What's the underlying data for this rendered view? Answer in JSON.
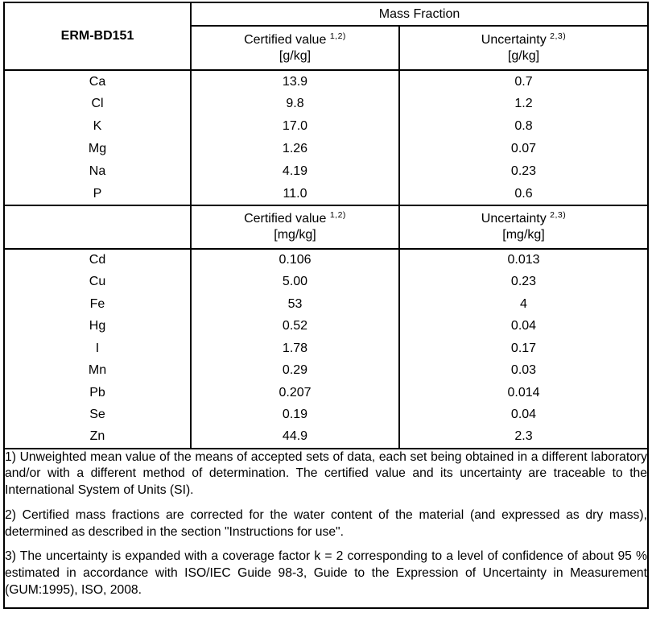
{
  "document": {
    "material_id": "ERM-BD151",
    "group_header": "Mass Fraction"
  },
  "sections": [
    {
      "value_header": {
        "label": "Certified value",
        "sup": "1,2)",
        "unit": "[g/kg]"
      },
      "uncertainty_header": {
        "label": "Uncertainty",
        "sup": "2,3)",
        "unit": "[g/kg]"
      },
      "rows": [
        {
          "element": "Ca",
          "value": "13.9",
          "uncertainty": "0.7"
        },
        {
          "element": "Cl",
          "value": "9.8",
          "uncertainty": "1.2"
        },
        {
          "element": "K",
          "value": "17.0",
          "uncertainty": "0.8"
        },
        {
          "element": "Mg",
          "value": "1.26",
          "uncertainty": "0.07"
        },
        {
          "element": "Na",
          "value": "4.19",
          "uncertainty": "0.23"
        },
        {
          "element": "P",
          "value": "11.0",
          "uncertainty": "0.6"
        }
      ]
    },
    {
      "value_header": {
        "label": "Certified value",
        "sup": "1,2)",
        "unit": "[mg/kg]"
      },
      "uncertainty_header": {
        "label": "Uncertainty",
        "sup": "2,3)",
        "unit": "[mg/kg]"
      },
      "rows": [
        {
          "element": "Cd",
          "value": "0.106",
          "uncertainty": "0.013"
        },
        {
          "element": "Cu",
          "value": "5.00",
          "uncertainty": "0.23"
        },
        {
          "element": "Fe",
          "value": "53",
          "uncertainty": "4"
        },
        {
          "element": "Hg",
          "value": "0.52",
          "uncertainty": "0.04"
        },
        {
          "element": "I",
          "value": "1.78",
          "uncertainty": "0.17"
        },
        {
          "element": "Mn",
          "value": "0.29",
          "uncertainty": "0.03"
        },
        {
          "element": "Pb",
          "value": "0.207",
          "uncertainty": "0.014"
        },
        {
          "element": "Se",
          "value": "0.19",
          "uncertainty": "0.04"
        },
        {
          "element": "Zn",
          "value": "44.9",
          "uncertainty": "2.3"
        }
      ]
    }
  ],
  "footnotes": [
    "1) Unweighted mean value of the means of accepted sets of data, each set being obtained in a different laboratory and/or with a different method of determination. The certified value and its uncertainty are traceable to the International System of Units (SI).",
    "2) Certified mass fractions are corrected for the water content of the material (and expressed as dry mass), determined as described in the section \"Instructions for use\".",
    "3) The uncertainty is expanded with a coverage factor k = 2 corresponding to a level of confidence of about 95 % estimated in accordance with ISO/IEC Guide 98-3, Guide to the Expression of Uncertainty in Measurement (GUM:1995), ISO, 2008."
  ],
  "colors": {
    "border": "#000000",
    "text": "#000000",
    "background": "#ffffff"
  }
}
